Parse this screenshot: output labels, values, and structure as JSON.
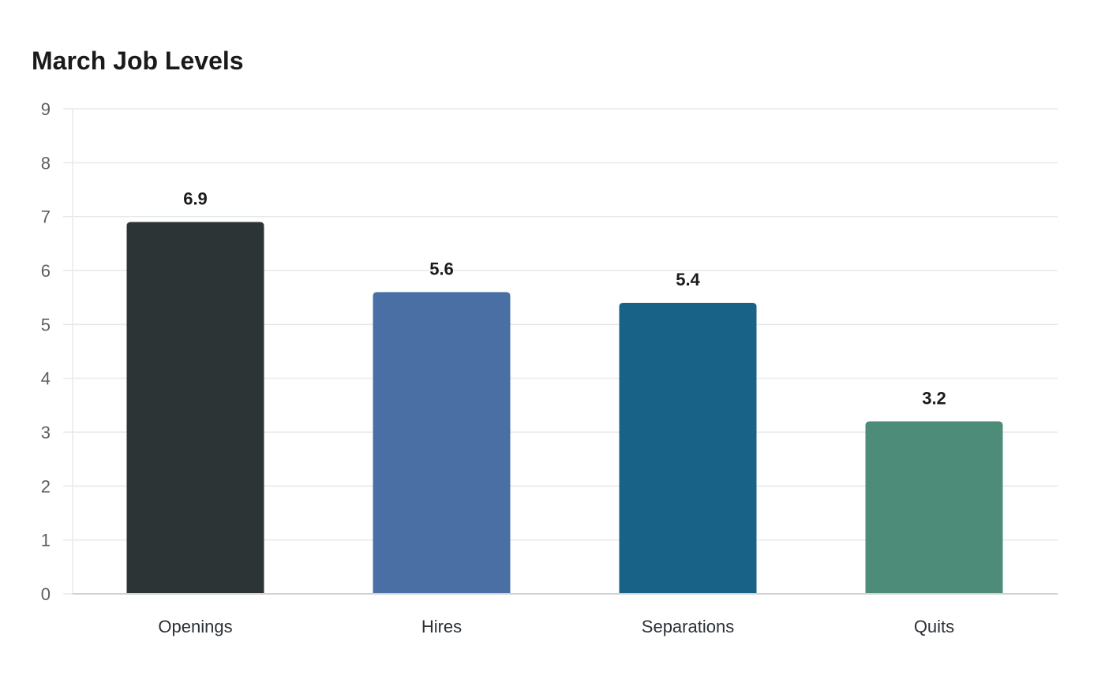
{
  "chart_data": {
    "type": "bar",
    "title": "March Job Levels",
    "xlabel": "",
    "ylabel": "",
    "categories": [
      "Openings",
      "Hires",
      "Separations",
      "Quits"
    ],
    "values": [
      6.9,
      5.6,
      5.4,
      3.2
    ],
    "data_labels": [
      "6.9",
      "5.6",
      "5.4",
      "3.2"
    ],
    "colors": [
      "#2d3436",
      "#4a6fa5",
      "#186287",
      "#4e8c7a"
    ],
    "ylim": [
      0,
      9
    ],
    "yticks": [
      0,
      1,
      2,
      3,
      4,
      5,
      6,
      7,
      8,
      9
    ],
    "grid": true,
    "legend": "none"
  }
}
